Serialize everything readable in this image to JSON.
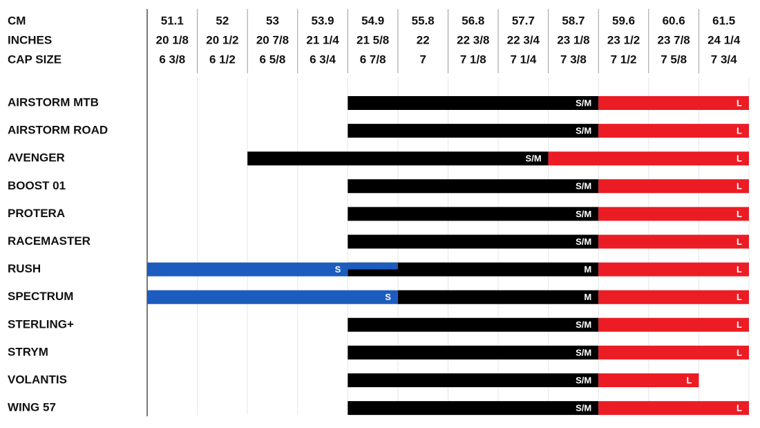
{
  "header_labels": [
    "CM",
    "INCHES",
    "CAP SIZE"
  ],
  "columns": [
    {
      "cm": 51.1,
      "inches": "20 1/8",
      "cap": "6 3/8"
    },
    {
      "cm": 52,
      "inches": "20 1/2",
      "cap": "6 1/2"
    },
    {
      "cm": 53,
      "inches": "20 7/8",
      "cap": "6 5/8"
    },
    {
      "cm": 53.9,
      "inches": "21 1/4",
      "cap": "6 3/4"
    },
    {
      "cm": 54.9,
      "inches": "21 5/8",
      "cap": "6 7/8"
    },
    {
      "cm": 55.8,
      "inches": "22",
      "cap": "7"
    },
    {
      "cm": 56.8,
      "inches": "22 3/8",
      "cap": "7 1/8"
    },
    {
      "cm": 57.7,
      "inches": "22 3/4",
      "cap": "7 1/4"
    },
    {
      "cm": 58.7,
      "inches": "23 1/8",
      "cap": "7 3/8"
    },
    {
      "cm": 59.6,
      "inches": "23 1/2",
      "cap": "7 1/2"
    },
    {
      "cm": 60.6,
      "inches": "23 7/8",
      "cap": "7 5/8"
    },
    {
      "cm": 61.5,
      "inches": "24 1/4",
      "cap": "7 3/4"
    }
  ],
  "helmets": [
    {
      "name": "AIRSTORM MTB",
      "sizes": [
        {
          "label": "S/M",
          "from": 54.9,
          "to": 58.7,
          "color": "#000000"
        },
        {
          "label": "L",
          "from": 59.6,
          "to": 61.5,
          "color": "#ec1c24"
        }
      ]
    },
    {
      "name": "AIRSTORM ROAD",
      "sizes": [
        {
          "label": "S/M",
          "from": 54.9,
          "to": 58.7,
          "color": "#000000"
        },
        {
          "label": "L",
          "from": 59.6,
          "to": 61.5,
          "color": "#ec1c24"
        }
      ]
    },
    {
      "name": "AVENGER",
      "sizes": [
        {
          "label": "S/M",
          "from": 53,
          "to": 57.7,
          "color": "#000000"
        },
        {
          "label": "L",
          "from": 58.7,
          "to": 61.5,
          "color": "#ec1c24"
        }
      ]
    },
    {
      "name": "BOOST 01",
      "sizes": [
        {
          "label": "S/M",
          "from": 54.9,
          "to": 58.7,
          "color": "#000000"
        },
        {
          "label": "L",
          "from": 59.6,
          "to": 61.5,
          "color": "#ec1c24"
        }
      ]
    },
    {
      "name": "PROTERA",
      "sizes": [
        {
          "label": "S/M",
          "from": 54.9,
          "to": 58.7,
          "color": "#000000"
        },
        {
          "label": "L",
          "from": 59.6,
          "to": 61.5,
          "color": "#ec1c24"
        }
      ]
    },
    {
      "name": "RACEMASTER",
      "sizes": [
        {
          "label": "S/M",
          "from": 54.9,
          "to": 58.7,
          "color": "#000000"
        },
        {
          "label": "L",
          "from": 59.6,
          "to": 61.5,
          "color": "#ec1c24"
        }
      ]
    },
    {
      "name": "RUSH",
      "sizes": [
        {
          "label": "M",
          "from": 54.9,
          "to": 58.7,
          "color": "#000000"
        },
        {
          "label": "S",
          "from": 51.1,
          "to": 54.9,
          "color": "#1d5cbf"
        },
        {
          "label": "L",
          "from": 59.6,
          "to": 61.5,
          "color": "#ec1c24"
        }
      ]
    },
    {
      "name": "SPECTRUM",
      "sizes": [
        {
          "label": "S",
          "from": 51.1,
          "to": 54.9,
          "color": "#1d5cbf"
        },
        {
          "label": "M",
          "from": 55.8,
          "to": 58.7,
          "color": "#000000"
        },
        {
          "label": "L",
          "from": 59.6,
          "to": 61.5,
          "color": "#ec1c24"
        }
      ]
    },
    {
      "name": "STERLING+",
      "sizes": [
        {
          "label": "S/M",
          "from": 54.9,
          "to": 58.7,
          "color": "#000000"
        },
        {
          "label": "L",
          "from": 59.6,
          "to": 61.5,
          "color": "#ec1c24"
        }
      ]
    },
    {
      "name": "STRYM",
      "sizes": [
        {
          "label": "S/M",
          "from": 54.9,
          "to": 58.7,
          "color": "#000000"
        },
        {
          "label": "L",
          "from": 59.6,
          "to": 61.5,
          "color": "#ec1c24"
        }
      ]
    },
    {
      "name": "VOLANTIS",
      "sizes": [
        {
          "label": "S/M",
          "from": 54.9,
          "to": 58.7,
          "color": "#000000"
        },
        {
          "label": "L",
          "from": 59.6,
          "to": 60.6,
          "color": "#ec1c24"
        }
      ]
    },
    {
      "name": "WING 57",
      "sizes": [
        {
          "label": "S/M",
          "from": 54.9,
          "to": 58.7,
          "color": "#000000"
        },
        {
          "label": "L",
          "from": 59.6,
          "to": 61.5,
          "color": "#ec1c24"
        }
      ]
    }
  ]
}
